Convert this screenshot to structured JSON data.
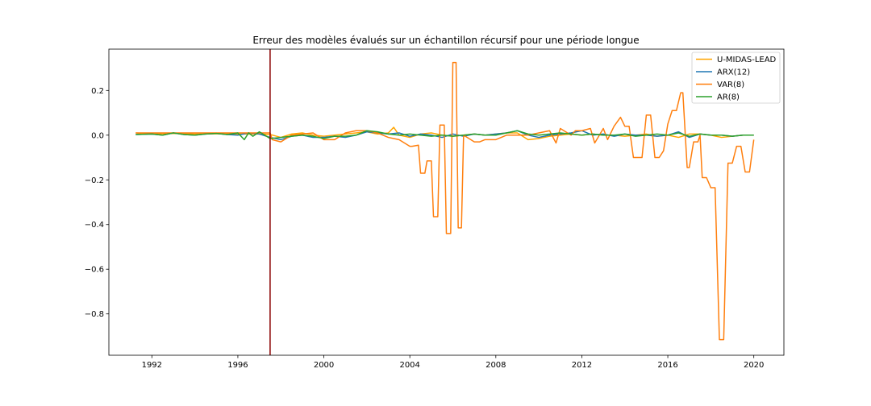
{
  "chart_data": {
    "type": "line",
    "title": "Erreur des modèles évalués sur un échantillon récursif pour une période longue",
    "xlabel": "",
    "ylabel": "",
    "xlim": [
      1990.0,
      2021.4
    ],
    "ylim": [
      -0.985,
      0.385
    ],
    "x_ticks": [
      1992,
      1996,
      2000,
      2004,
      2008,
      2012,
      2016,
      2020
    ],
    "x_tick_labels": [
      "1992",
      "1996",
      "2000",
      "2004",
      "2008",
      "2012",
      "2016",
      "2020"
    ],
    "y_ticks": [
      0.2,
      0.0,
      -0.2,
      -0.4,
      -0.6,
      -0.8
    ],
    "y_tick_labels": [
      "0.2",
      "0.0",
      "−0.2",
      "−0.4",
      "−0.6",
      "−0.8"
    ],
    "grid": false,
    "legend_position": "top-right",
    "vertical_line": {
      "x": 1997.5,
      "color": "#8b0000"
    },
    "series": [
      {
        "name": "U-MIDAS-LEAD",
        "color": "#ffa500",
        "x": [
          1991.25,
          1992.0,
          1993.0,
          1994.0,
          1995.0,
          1996.0,
          1997.0,
          1997.5,
          1998.0,
          1998.5,
          1999.0,
          1999.5,
          2000.0,
          2000.5,
          2001.0,
          2001.5,
          2002.0,
          2002.5,
          2003.0,
          2003.25,
          2003.5,
          2004.0,
          2004.5,
          2005.0,
          2005.5,
          2006.0,
          2006.5,
          2007.0,
          2007.5,
          2008.0,
          2008.5,
          2009.0,
          2009.5,
          2010.0,
          2010.5,
          2011.0,
          2011.5,
          2012.0,
          2012.5,
          2013.0,
          2013.5,
          2014.0,
          2014.5,
          2015.0,
          2015.5,
          2016.0,
          2016.5,
          2017.0,
          2017.5,
          2018.0,
          2018.5,
          2019.0,
          2019.5,
          2020.0
        ],
        "y": [
          0.01,
          0.005,
          0.008,
          0.005,
          0.006,
          0.005,
          0.005,
          0.003,
          -0.01,
          0.005,
          0.01,
          0.0,
          -0.005,
          0.0,
          0.005,
          0.01,
          0.015,
          0.005,
          0.01,
          0.035,
          0.0,
          -0.01,
          0.005,
          0.01,
          0.0,
          -0.005,
          0.0,
          0.005,
          0.0,
          0.005,
          0.01,
          0.01,
          -0.02,
          -0.015,
          -0.005,
          0.0,
          0.005,
          0.0,
          0.005,
          0.0,
          0.0,
          -0.005,
          0.0,
          0.005,
          -0.005,
          0.0,
          -0.01,
          0.005,
          0.005,
          0.0,
          -0.01,
          -0.005,
          0.0,
          0.0
        ]
      },
      {
        "name": "ARX(12)",
        "color": "#1f77b4",
        "x": [
          1991.25,
          1992.0,
          1992.5,
          1993.0,
          1993.5,
          1994.0,
          1994.5,
          1995.0,
          1995.5,
          1996.0,
          1996.5,
          1997.0,
          1997.5,
          1998.0,
          1998.5,
          1999.0,
          1999.5,
          2000.0,
          2000.5,
          2001.0,
          2001.5,
          2002.0,
          2002.5,
          2003.0,
          2003.5,
          2004.0,
          2004.5,
          2005.0,
          2005.5,
          2006.0,
          2006.5,
          2007.0,
          2007.5,
          2008.0,
          2008.5,
          2009.0,
          2009.5,
          2010.0,
          2010.5,
          2011.0,
          2011.5,
          2012.0,
          2012.5,
          2013.0,
          2013.5,
          2014.0,
          2014.5,
          2015.0,
          2015.5,
          2016.0,
          2016.5,
          2017.0,
          2017.5,
          2018.0,
          2018.5,
          2019.0,
          2019.5,
          2020.0
        ],
        "y": [
          0.003,
          0.005,
          0.0,
          0.01,
          0.003,
          0.0,
          0.005,
          0.008,
          0.003,
          0.0,
          0.01,
          0.005,
          -0.01,
          -0.02,
          -0.005,
          0.0,
          -0.01,
          -0.01,
          -0.005,
          -0.01,
          0.0,
          0.015,
          0.01,
          0.005,
          0.01,
          -0.005,
          0.005,
          0.0,
          -0.01,
          0.005,
          -0.005,
          0.005,
          0.0,
          0.005,
          0.01,
          0.02,
          0.0,
          -0.01,
          0.0,
          0.005,
          0.01,
          0.02,
          0.0,
          0.005,
          -0.005,
          0.005,
          0.0,
          0.0,
          -0.005,
          0.0,
          0.015,
          -0.01,
          0.005,
          0.0,
          0.0,
          -0.005,
          0.0,
          0.0
        ]
      },
      {
        "name": "VAR(8)",
        "color": "#ff7f0e",
        "x": [
          1991.25,
          1992.0,
          1993.0,
          1994.0,
          1995.0,
          1996.0,
          1997.0,
          1997.5,
          1997.6,
          1998.0,
          1998.5,
          1999.0,
          1999.5,
          2000.0,
          2000.5,
          2001.0,
          2001.5,
          2002.0,
          2002.5,
          2003.0,
          2003.5,
          2004.0,
          2004.1,
          2004.4,
          2004.5,
          2004.7,
          2004.8,
          2005.0,
          2005.1,
          2005.3,
          2005.4,
          2005.6,
          2005.7,
          2005.9,
          2006.0,
          2006.15,
          2006.25,
          2006.4,
          2006.5,
          2007.0,
          2007.25,
          2007.5,
          2008.0,
          2008.5,
          2009.0,
          2009.5,
          2010.0,
          2010.5,
          2010.8,
          2011.0,
          2011.5,
          2011.7,
          2012.0,
          2012.4,
          2012.6,
          2013.0,
          2013.2,
          2013.5,
          2013.8,
          2014.0,
          2014.2,
          2014.4,
          2014.6,
          2014.8,
          2015.0,
          2015.2,
          2015.4,
          2015.6,
          2015.8,
          2016.0,
          2016.2,
          2016.4,
          2016.6,
          2016.7,
          2016.9,
          2017.0,
          2017.2,
          2017.4,
          2017.5,
          2017.6,
          2017.8,
          2018.0,
          2018.2,
          2018.4,
          2018.6,
          2018.8,
          2019.0,
          2019.2,
          2019.4,
          2019.6,
          2019.8,
          2020.0
        ],
        "y": [
          0.01,
          0.01,
          0.01,
          0.01,
          0.01,
          0.01,
          0.01,
          0.01,
          -0.02,
          -0.03,
          0.0,
          0.005,
          0.01,
          -0.02,
          -0.02,
          0.01,
          0.02,
          0.02,
          0.01,
          -0.01,
          -0.02,
          -0.05,
          -0.05,
          -0.045,
          -0.17,
          -0.17,
          -0.115,
          -0.115,
          -0.365,
          -0.365,
          0.045,
          0.045,
          -0.44,
          -0.44,
          0.325,
          0.325,
          -0.415,
          -0.415,
          0.0,
          -0.03,
          -0.03,
          -0.02,
          -0.02,
          0.0,
          0.0,
          0.0,
          0.01,
          0.02,
          -0.035,
          0.03,
          0.0,
          0.02,
          0.02,
          0.03,
          -0.035,
          0.03,
          -0.02,
          0.04,
          0.08,
          0.04,
          0.04,
          -0.1,
          -0.1,
          -0.1,
          0.09,
          0.09,
          -0.1,
          -0.1,
          -0.07,
          0.05,
          0.11,
          0.11,
          0.19,
          0.19,
          -0.145,
          -0.145,
          -0.03,
          -0.03,
          0.0,
          -0.19,
          -0.19,
          -0.235,
          -0.235,
          -0.915,
          -0.915,
          -0.125,
          -0.125,
          -0.05,
          -0.05,
          -0.165,
          -0.165,
          -0.02
        ]
      },
      {
        "name": "AR(8)",
        "color": "#2ca02c",
        "x": [
          1991.25,
          1992.0,
          1992.5,
          1993.0,
          1993.5,
          1994.0,
          1994.5,
          1995.0,
          1995.5,
          1996.0,
          1996.3,
          1996.5,
          1996.7,
          1997.0,
          1997.25,
          1997.5,
          1998.0,
          1998.5,
          1999.0,
          1999.5,
          2000.0,
          2000.5,
          2001.0,
          2001.5,
          2002.0,
          2002.5,
          2003.0,
          2003.5,
          2004.0,
          2004.5,
          2005.0,
          2005.5,
          2006.0,
          2006.5,
          2007.0,
          2007.5,
          2008.0,
          2008.5,
          2009.0,
          2009.5,
          2010.0,
          2010.5,
          2011.0,
          2011.5,
          2012.0,
          2012.5,
          2013.0,
          2013.5,
          2014.0,
          2014.5,
          2015.0,
          2015.5,
          2016.0,
          2016.5,
          2017.0,
          2017.5,
          2018.0,
          2018.5,
          2019.0,
          2019.5,
          2020.0
        ],
        "y": [
          0.003,
          0.005,
          0.0,
          0.01,
          0.003,
          0.0,
          0.005,
          0.008,
          0.003,
          0.01,
          -0.02,
          0.01,
          -0.005,
          0.015,
          0.0,
          -0.015,
          -0.01,
          -0.005,
          0.0,
          -0.005,
          -0.015,
          -0.005,
          -0.005,
          0.0,
          0.02,
          0.015,
          0.005,
          0.0,
          0.005,
          0.0,
          -0.005,
          0.0,
          -0.005,
          0.0,
          0.005,
          0.0,
          0.0,
          0.01,
          0.02,
          0.005,
          0.0,
          0.005,
          0.01,
          0.005,
          0.0,
          0.005,
          0.0,
          0.0,
          0.005,
          -0.005,
          0.0,
          0.005,
          0.0,
          0.01,
          -0.005,
          0.005,
          0.0,
          0.0,
          -0.005,
          0.0,
          0.0
        ]
      }
    ]
  }
}
